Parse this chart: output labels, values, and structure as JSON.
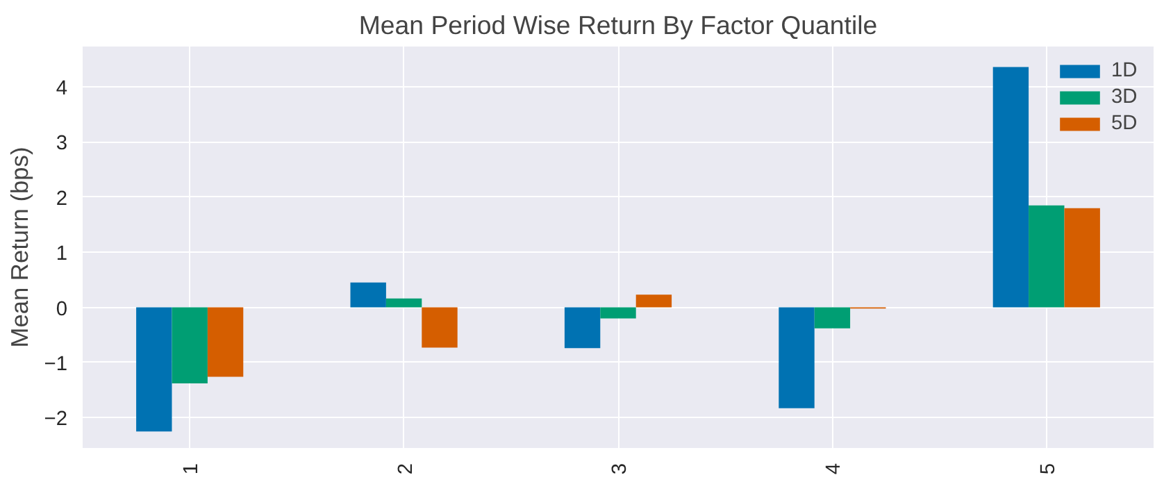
{
  "chart_data": {
    "type": "bar",
    "title": "Mean Period Wise Return By Factor Quantile",
    "ylabel": "Mean Return (bps)",
    "categories": [
      "1",
      "2",
      "3",
      "4",
      "5"
    ],
    "series": [
      {
        "name": "1D",
        "color": "#0072b2",
        "values": [
          -2.25,
          0.45,
          -0.74,
          -1.83,
          4.36
        ]
      },
      {
        "name": "3D",
        "color": "#009e73",
        "values": [
          -1.38,
          0.16,
          -0.2,
          -0.38,
          1.85
        ]
      },
      {
        "name": "5D",
        "color": "#d55e00",
        "values": [
          -1.26,
          -0.73,
          0.23,
          -0.02,
          1.8
        ]
      }
    ],
    "ylim": [
      -2.55,
      4.73
    ],
    "yticks": [
      -2,
      -1,
      0,
      1,
      2,
      3,
      4
    ],
    "grid": true,
    "legend": "top right"
  }
}
